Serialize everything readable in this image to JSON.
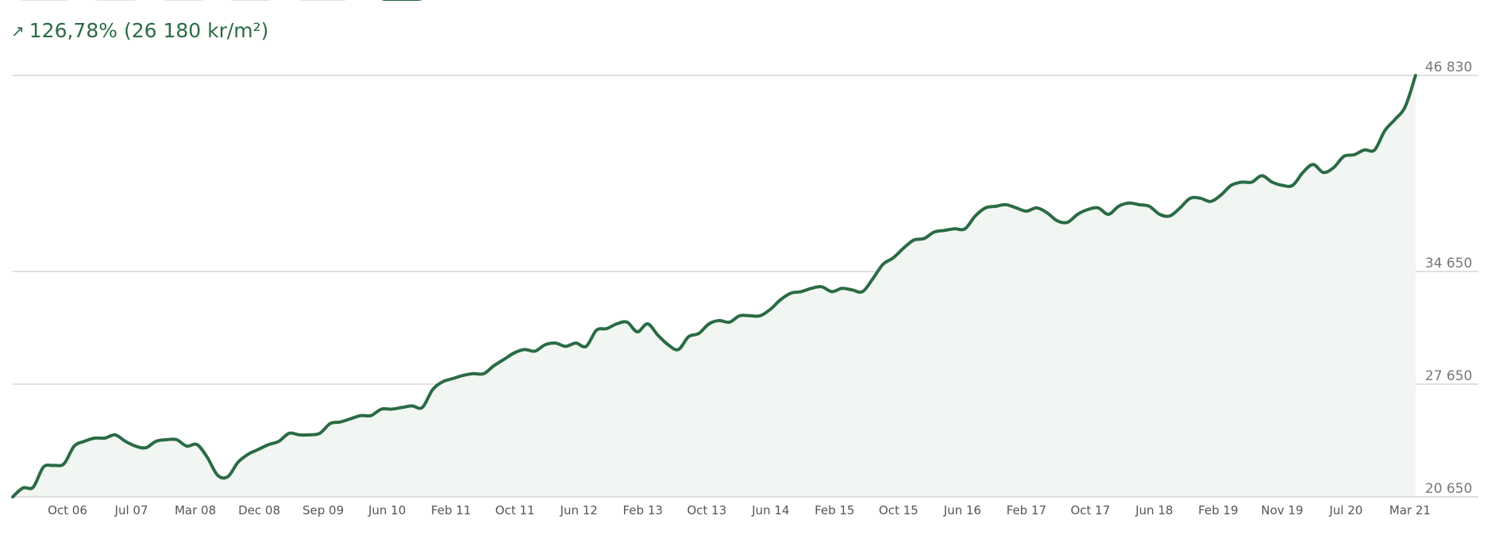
{
  "header": {
    "change_icon": "arrow-up-right-icon",
    "change_text": "126,78% (26 180 kr/m²)",
    "accent_color": "#2a6b44"
  },
  "tabs": [
    {
      "selected": false
    },
    {
      "selected": false
    },
    {
      "selected": false
    },
    {
      "selected": false
    },
    {
      "selected": false
    },
    {
      "selected": true
    }
  ],
  "chart_data": {
    "type": "area",
    "title": "",
    "xlabel": "",
    "ylabel": "",
    "ylim": [
      20650,
      46830
    ],
    "y_ticks": [
      20650,
      27650,
      34650,
      46830
    ],
    "y_tick_labels": [
      "20 650",
      "27 650",
      "34 650",
      "46 830"
    ],
    "x_tick_labels": [
      "Oct 06",
      "Jul 07",
      "Mar 08",
      "Dec 08",
      "Sep 09",
      "Jun 10",
      "Feb 11",
      "Oct 11",
      "Jun 12",
      "Feb 13",
      "Oct 13",
      "Jun 14",
      "Feb 15",
      "Oct 15",
      "Jun 16",
      "Feb 17",
      "Oct 17",
      "Jun 18",
      "Feb 19",
      "Nov 19",
      "Jul 20",
      "Mar 21"
    ],
    "grid": "horizontal",
    "line_color": "#2a6b44",
    "fill_color": "#f1f6f2",
    "series": [
      {
        "name": "",
        "values": [
          20650,
          21200,
          21250,
          22500,
          22600,
          22700,
          23800,
          24100,
          24300,
          24300,
          24500,
          24100,
          23800,
          23700,
          24100,
          24200,
          24200,
          23800,
          23900,
          23100,
          22000,
          21900,
          22800,
          23300,
          23600,
          23900,
          24100,
          24600,
          24500,
          24500,
          24600,
          25200,
          25300,
          25500,
          25700,
          25700,
          26100,
          26100,
          26200,
          26300,
          26200,
          27300,
          27800,
          28000,
          28200,
          28300,
          28300,
          28800,
          29200,
          29600,
          29800,
          29700,
          30100,
          30200,
          30000,
          30200,
          30000,
          31000,
          31100,
          31400,
          31500,
          30900,
          31400,
          30700,
          30100,
          29800,
          30600,
          30800,
          31400,
          31600,
          31500,
          31900,
          31900,
          31900,
          32300,
          32900,
          33300,
          33400,
          33600,
          33700,
          33400,
          33600,
          33500,
          33400,
          34200,
          35100,
          35500,
          36100,
          36600,
          36700,
          37100,
          37200,
          37300,
          37300,
          38100,
          38600,
          38700,
          38800,
          38600,
          38400,
          38600,
          38300,
          37800,
          37700,
          38200,
          38500,
          38600,
          38200,
          38700,
          38900,
          38800,
          38700,
          38200,
          38100,
          38600,
          39200,
          39200,
          39000,
          39400,
          40000,
          40200,
          40200,
          40600,
          40200,
          40000,
          40000,
          40800,
          41300,
          40800,
          41100,
          41800,
          41900,
          42200,
          42200,
          43400,
          44100,
          44900,
          46830
        ]
      }
    ]
  }
}
